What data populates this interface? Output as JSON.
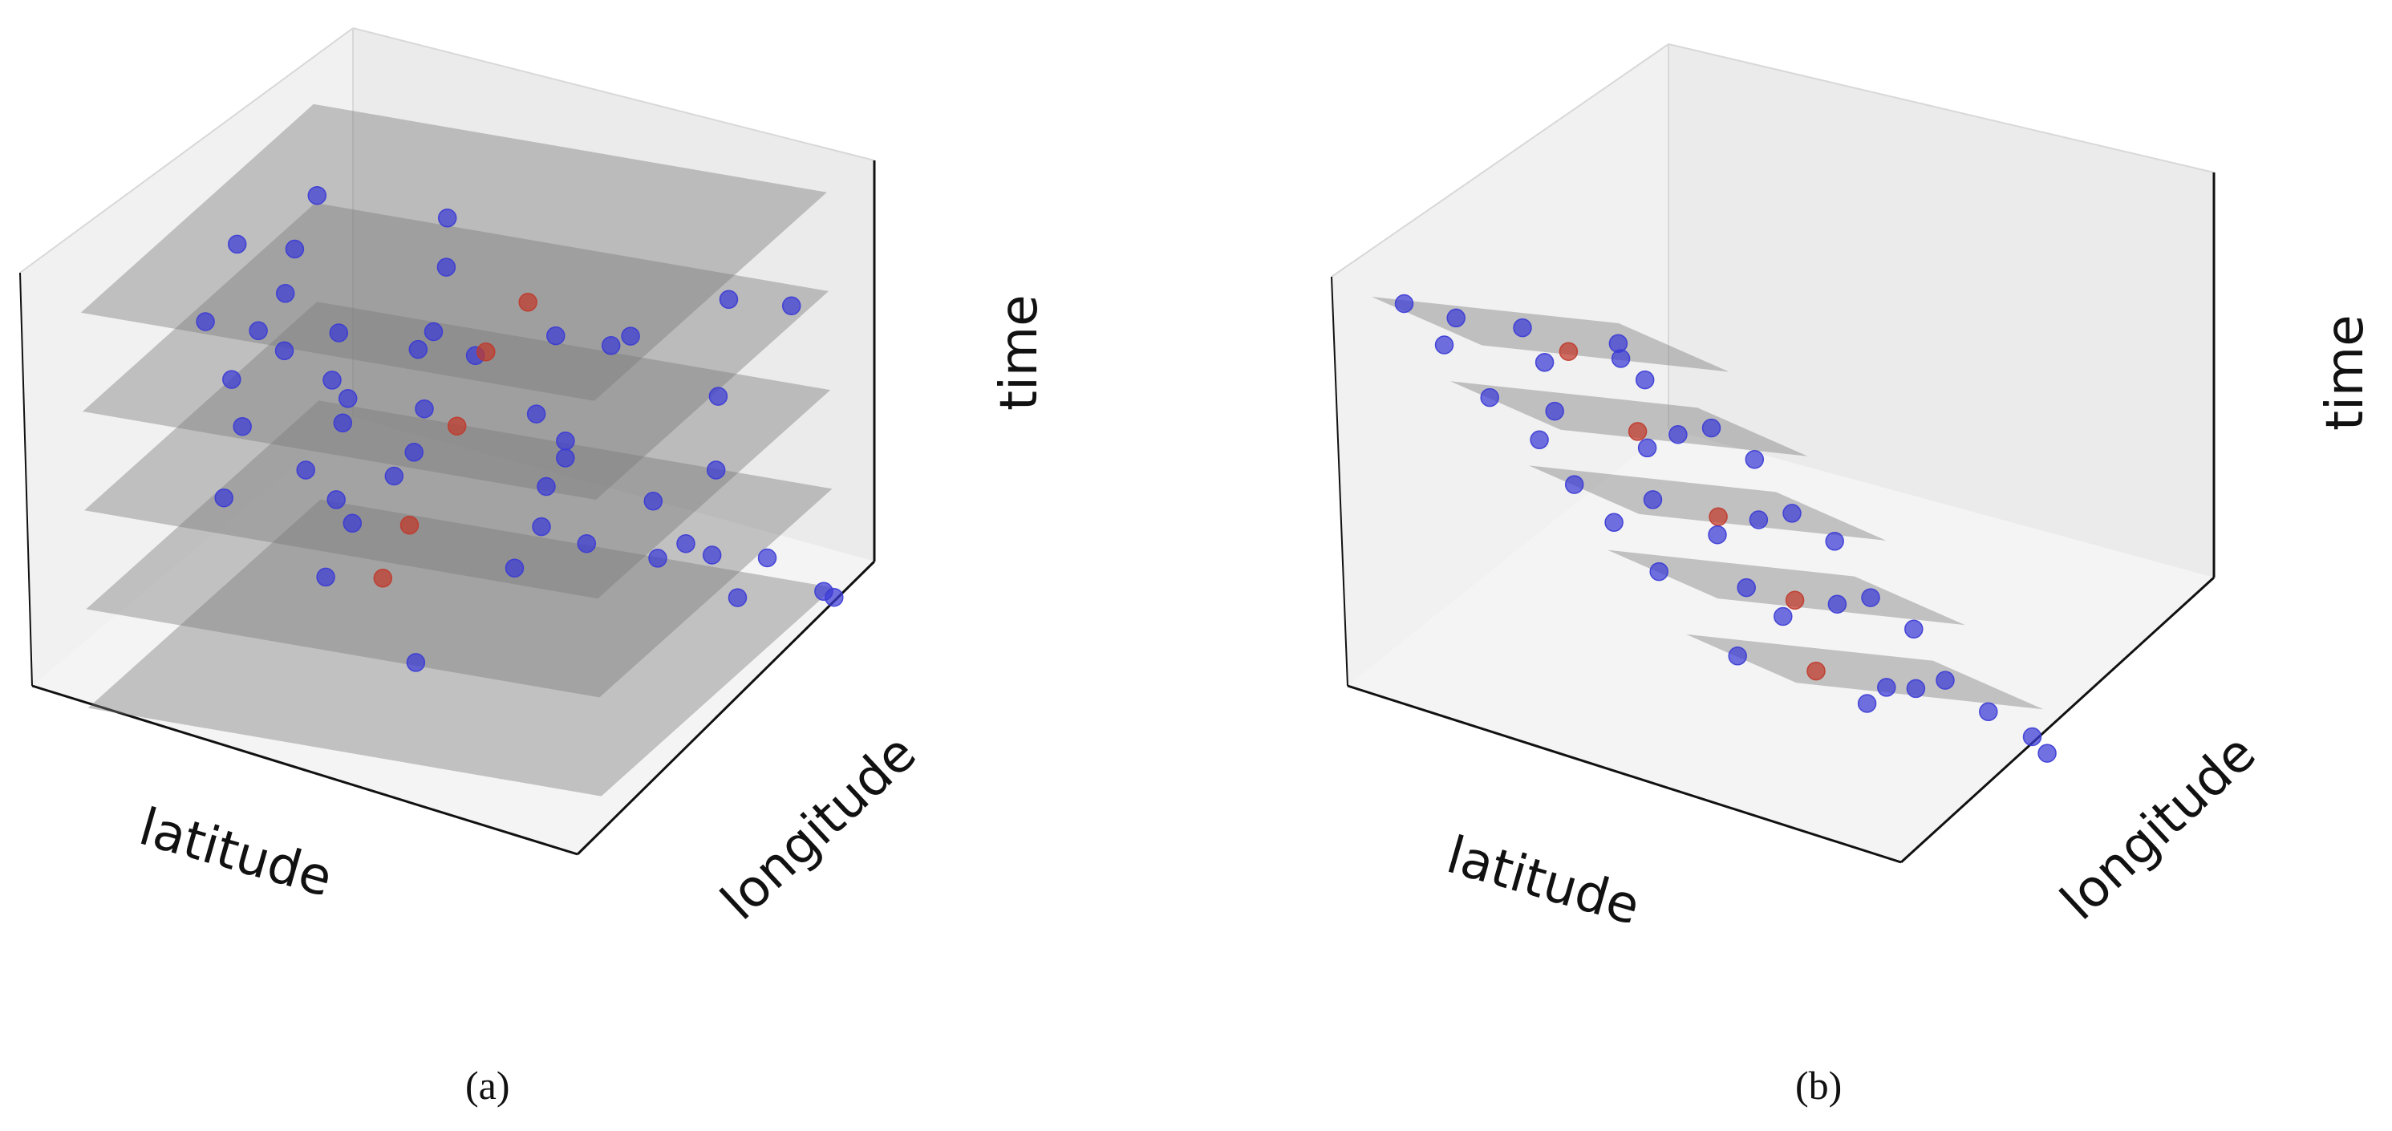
{
  "chart_data": [
    {
      "type": "scatter",
      "panel": "(a)",
      "axes": {
        "x_label": "latitude",
        "y_label": "longitude",
        "z_label": "time"
      },
      "grid": false,
      "slice_count": 5,
      "slices": [
        {
          "offset_lat": 0,
          "offset_lon": 0,
          "size": 1
        },
        {
          "offset_lat": 0,
          "offset_lon": 0,
          "size": 1
        },
        {
          "offset_lat": 0,
          "offset_lon": 0,
          "size": 1
        },
        {
          "offset_lat": 0,
          "offset_lon": 0,
          "size": 1
        },
        {
          "offset_lat": 0,
          "offset_lon": 0,
          "size": 1
        }
      ],
      "point_colors": {
        "sample": "#3a3ad6",
        "anchor": "#c0392b"
      },
      "points": [
        {
          "lat": 0.22,
          "lon": 0.05,
          "t": 1.0,
          "kind": "sample"
        },
        {
          "lat": 0.3,
          "lon": 0.1,
          "t": 0.97,
          "kind": "sample"
        },
        {
          "lat": 0.42,
          "lon": 0.18,
          "t": 0.95,
          "kind": "sample"
        },
        {
          "lat": 0.1,
          "lon": 0.45,
          "t": 0.96,
          "kind": "sample"
        },
        {
          "lat": 0.18,
          "lon": 0.52,
          "t": 0.93,
          "kind": "sample"
        },
        {
          "lat": 0.55,
          "lon": 0.3,
          "t": 0.92,
          "kind": "sample"
        },
        {
          "lat": 0.7,
          "lon": 0.15,
          "t": 0.97,
          "kind": "sample"
        },
        {
          "lat": 0.85,
          "lon": 0.4,
          "t": 0.9,
          "kind": "sample"
        },
        {
          "lat": 0.62,
          "lon": 0.55,
          "t": 0.88,
          "kind": "anchor"
        },
        {
          "lat": 0.92,
          "lon": 0.75,
          "t": 0.85,
          "kind": "sample"
        },
        {
          "lat": 0.35,
          "lon": 0.8,
          "t": 0.9,
          "kind": "sample"
        },
        {
          "lat": 0.05,
          "lon": 0.9,
          "t": 0.84,
          "kind": "sample"
        },
        {
          "lat": 0.2,
          "lon": 0.2,
          "t": 0.78,
          "kind": "sample"
        },
        {
          "lat": 0.35,
          "lon": 0.3,
          "t": 0.76,
          "kind": "sample"
        },
        {
          "lat": 0.45,
          "lon": 0.45,
          "t": 0.78,
          "kind": "sample"
        },
        {
          "lat": 0.55,
          "lon": 0.52,
          "t": 0.76,
          "kind": "anchor"
        },
        {
          "lat": 0.65,
          "lon": 0.6,
          "t": 0.78,
          "kind": "sample"
        },
        {
          "lat": 0.75,
          "lon": 0.7,
          "t": 0.75,
          "kind": "sample"
        },
        {
          "lat": 0.1,
          "lon": 0.65,
          "t": 0.74,
          "kind": "sample"
        },
        {
          "lat": 0.85,
          "lon": 0.2,
          "t": 0.77,
          "kind": "sample"
        },
        {
          "lat": 0.95,
          "lon": 0.95,
          "t": 0.74,
          "kind": "sample"
        },
        {
          "lat": 0.3,
          "lon": 0.9,
          "t": 0.72,
          "kind": "sample"
        },
        {
          "lat": 0.6,
          "lon": 0.1,
          "t": 0.74,
          "kind": "sample"
        },
        {
          "lat": 0.15,
          "lon": 0.35,
          "t": 0.58,
          "kind": "sample"
        },
        {
          "lat": 0.3,
          "lon": 0.45,
          "t": 0.57,
          "kind": "sample"
        },
        {
          "lat": 0.4,
          "lon": 0.58,
          "t": 0.56,
          "kind": "sample"
        },
        {
          "lat": 0.5,
          "lon": 0.5,
          "t": 0.58,
          "kind": "anchor"
        },
        {
          "lat": 0.6,
          "lon": 0.62,
          "t": 0.57,
          "kind": "sample"
        },
        {
          "lat": 0.72,
          "lon": 0.48,
          "t": 0.56,
          "kind": "sample"
        },
        {
          "lat": 0.85,
          "lon": 0.85,
          "t": 0.55,
          "kind": "sample"
        },
        {
          "lat": 0.05,
          "lon": 0.75,
          "t": 0.54,
          "kind": "sample"
        },
        {
          "lat": 0.95,
          "lon": 0.35,
          "t": 0.57,
          "kind": "sample"
        },
        {
          "lat": 0.25,
          "lon": 0.05,
          "t": 0.58,
          "kind": "sample"
        },
        {
          "lat": 0.18,
          "lon": 0.55,
          "t": 0.38,
          "kind": "sample"
        },
        {
          "lat": 0.32,
          "lon": 0.62,
          "t": 0.36,
          "kind": "sample"
        },
        {
          "lat": 0.45,
          "lon": 0.4,
          "t": 0.38,
          "kind": "anchor"
        },
        {
          "lat": 0.58,
          "lon": 0.7,
          "t": 0.35,
          "kind": "sample"
        },
        {
          "lat": 0.7,
          "lon": 0.3,
          "t": 0.38,
          "kind": "sample"
        },
        {
          "lat": 0.82,
          "lon": 0.9,
          "t": 0.34,
          "kind": "sample"
        },
        {
          "lat": 0.08,
          "lon": 0.95,
          "t": 0.33,
          "kind": "sample"
        },
        {
          "lat": 0.92,
          "lon": 0.55,
          "t": 0.36,
          "kind": "sample"
        },
        {
          "lat": 0.4,
          "lon": 0.15,
          "t": 0.37,
          "kind": "sample"
        },
        {
          "lat": 0.2,
          "lon": 0.7,
          "t": 0.18,
          "kind": "sample"
        },
        {
          "lat": 0.35,
          "lon": 0.5,
          "t": 0.18,
          "kind": "anchor"
        },
        {
          "lat": 0.5,
          "lon": 0.85,
          "t": 0.16,
          "kind": "sample"
        },
        {
          "lat": 0.62,
          "lon": 0.78,
          "t": 0.18,
          "kind": "sample"
        },
        {
          "lat": 0.74,
          "lon": 0.82,
          "t": 0.15,
          "kind": "sample"
        },
        {
          "lat": 0.8,
          "lon": 0.92,
          "t": 0.12,
          "kind": "sample"
        },
        {
          "lat": 0.88,
          "lon": 0.98,
          "t": 0.1,
          "kind": "sample"
        },
        {
          "lat": 0.1,
          "lon": 0.85,
          "t": 0.14,
          "kind": "sample"
        },
        {
          "lat": 0.95,
          "lon": 0.7,
          "t": 0.16,
          "kind": "sample"
        },
        {
          "lat": 0.55,
          "lon": 0.2,
          "t": 0.17,
          "kind": "sample"
        },
        {
          "lat": 0.98,
          "lon": 1.0,
          "t": 0.03,
          "kind": "sample"
        },
        {
          "lat": 1.0,
          "lon": 1.0,
          "t": 0.02,
          "kind": "sample"
        }
      ],
      "caption": "(a)"
    },
    {
      "type": "scatter",
      "panel": "(b)",
      "axes": {
        "x_label": "latitude",
        "y_label": "longitude",
        "z_label": "time"
      },
      "grid": false,
      "slice_count": 5,
      "slices": [
        {
          "offset_lat": 0.0,
          "offset_lon": 0.0,
          "size": 0.55
        },
        {
          "offset_lat": 0.1,
          "offset_lon": 0.12,
          "size": 0.55
        },
        {
          "offset_lat": 0.2,
          "offset_lon": 0.24,
          "size": 0.55
        },
        {
          "offset_lat": 0.3,
          "offset_lon": 0.36,
          "size": 0.55
        },
        {
          "offset_lat": 0.4,
          "offset_lon": 0.48,
          "size": 0.55
        }
      ],
      "point_colors": {
        "sample": "#3a3ad6",
        "anchor": "#c0392b"
      },
      "points": [
        {
          "lat": 0.05,
          "lon": 0.05,
          "t": 1.0,
          "kind": "sample"
        },
        {
          "lat": 0.15,
          "lon": 0.08,
          "t": 0.98,
          "kind": "sample"
        },
        {
          "lat": 0.28,
          "lon": 0.12,
          "t": 0.98,
          "kind": "sample"
        },
        {
          "lat": 0.0,
          "lon": 0.35,
          "t": 0.95,
          "kind": "sample"
        },
        {
          "lat": 0.3,
          "lon": 0.3,
          "t": 0.96,
          "kind": "anchor"
        },
        {
          "lat": 0.45,
          "lon": 0.22,
          "t": 0.94,
          "kind": "sample"
        },
        {
          "lat": 0.2,
          "lon": 0.4,
          "t": 0.94,
          "kind": "sample"
        },
        {
          "lat": 0.4,
          "lon": 0.45,
          "t": 0.93,
          "kind": "sample"
        },
        {
          "lat": 0.5,
          "lon": 0.1,
          "t": 0.96,
          "kind": "sample"
        },
        {
          "lat": 0.15,
          "lon": 0.2,
          "t": 0.78,
          "kind": "sample"
        },
        {
          "lat": 0.25,
          "lon": 0.3,
          "t": 0.78,
          "kind": "sample"
        },
        {
          "lat": 0.38,
          "lon": 0.42,
          "t": 0.77,
          "kind": "anchor"
        },
        {
          "lat": 0.5,
          "lon": 0.35,
          "t": 0.76,
          "kind": "sample"
        },
        {
          "lat": 0.58,
          "lon": 0.55,
          "t": 0.75,
          "kind": "sample"
        },
        {
          "lat": 0.32,
          "lon": 0.6,
          "t": 0.76,
          "kind": "sample"
        },
        {
          "lat": 0.62,
          "lon": 0.25,
          "t": 0.77,
          "kind": "sample"
        },
        {
          "lat": 0.1,
          "lon": 0.55,
          "t": 0.74,
          "kind": "sample"
        },
        {
          "lat": 0.25,
          "lon": 0.35,
          "t": 0.58,
          "kind": "sample"
        },
        {
          "lat": 0.38,
          "lon": 0.45,
          "t": 0.58,
          "kind": "sample"
        },
        {
          "lat": 0.48,
          "lon": 0.55,
          "t": 0.57,
          "kind": "anchor"
        },
        {
          "lat": 0.6,
          "lon": 0.48,
          "t": 0.56,
          "kind": "sample"
        },
        {
          "lat": 0.68,
          "lon": 0.68,
          "t": 0.56,
          "kind": "sample"
        },
        {
          "lat": 0.4,
          "lon": 0.72,
          "t": 0.55,
          "kind": "sample"
        },
        {
          "lat": 0.72,
          "lon": 0.38,
          "t": 0.57,
          "kind": "sample"
        },
        {
          "lat": 0.2,
          "lon": 0.65,
          "t": 0.54,
          "kind": "sample"
        },
        {
          "lat": 0.35,
          "lon": 0.5,
          "t": 0.38,
          "kind": "sample"
        },
        {
          "lat": 0.5,
          "lon": 0.6,
          "t": 0.38,
          "kind": "sample"
        },
        {
          "lat": 0.58,
          "lon": 0.66,
          "t": 0.37,
          "kind": "anchor"
        },
        {
          "lat": 0.7,
          "lon": 0.6,
          "t": 0.36,
          "kind": "sample"
        },
        {
          "lat": 0.78,
          "lon": 0.8,
          "t": 0.35,
          "kind": "sample"
        },
        {
          "lat": 0.48,
          "lon": 0.82,
          "t": 0.35,
          "kind": "sample"
        },
        {
          "lat": 0.82,
          "lon": 0.5,
          "t": 0.37,
          "kind": "sample"
        },
        {
          "lat": 0.45,
          "lon": 0.62,
          "t": 0.18,
          "kind": "sample"
        },
        {
          "lat": 0.58,
          "lon": 0.72,
          "t": 0.18,
          "kind": "anchor"
        },
        {
          "lat": 0.7,
          "lon": 0.8,
          "t": 0.17,
          "kind": "sample"
        },
        {
          "lat": 0.8,
          "lon": 0.72,
          "t": 0.16,
          "kind": "sample"
        },
        {
          "lat": 0.88,
          "lon": 0.9,
          "t": 0.15,
          "kind": "sample"
        },
        {
          "lat": 0.6,
          "lon": 0.92,
          "t": 0.14,
          "kind": "sample"
        },
        {
          "lat": 0.92,
          "lon": 0.6,
          "t": 0.17,
          "kind": "sample"
        },
        {
          "lat": 0.95,
          "lon": 0.95,
          "t": 0.1,
          "kind": "sample"
        },
        {
          "lat": 0.97,
          "lon": 0.97,
          "t": 0.06,
          "kind": "sample"
        }
      ],
      "caption": "(b)"
    }
  ]
}
